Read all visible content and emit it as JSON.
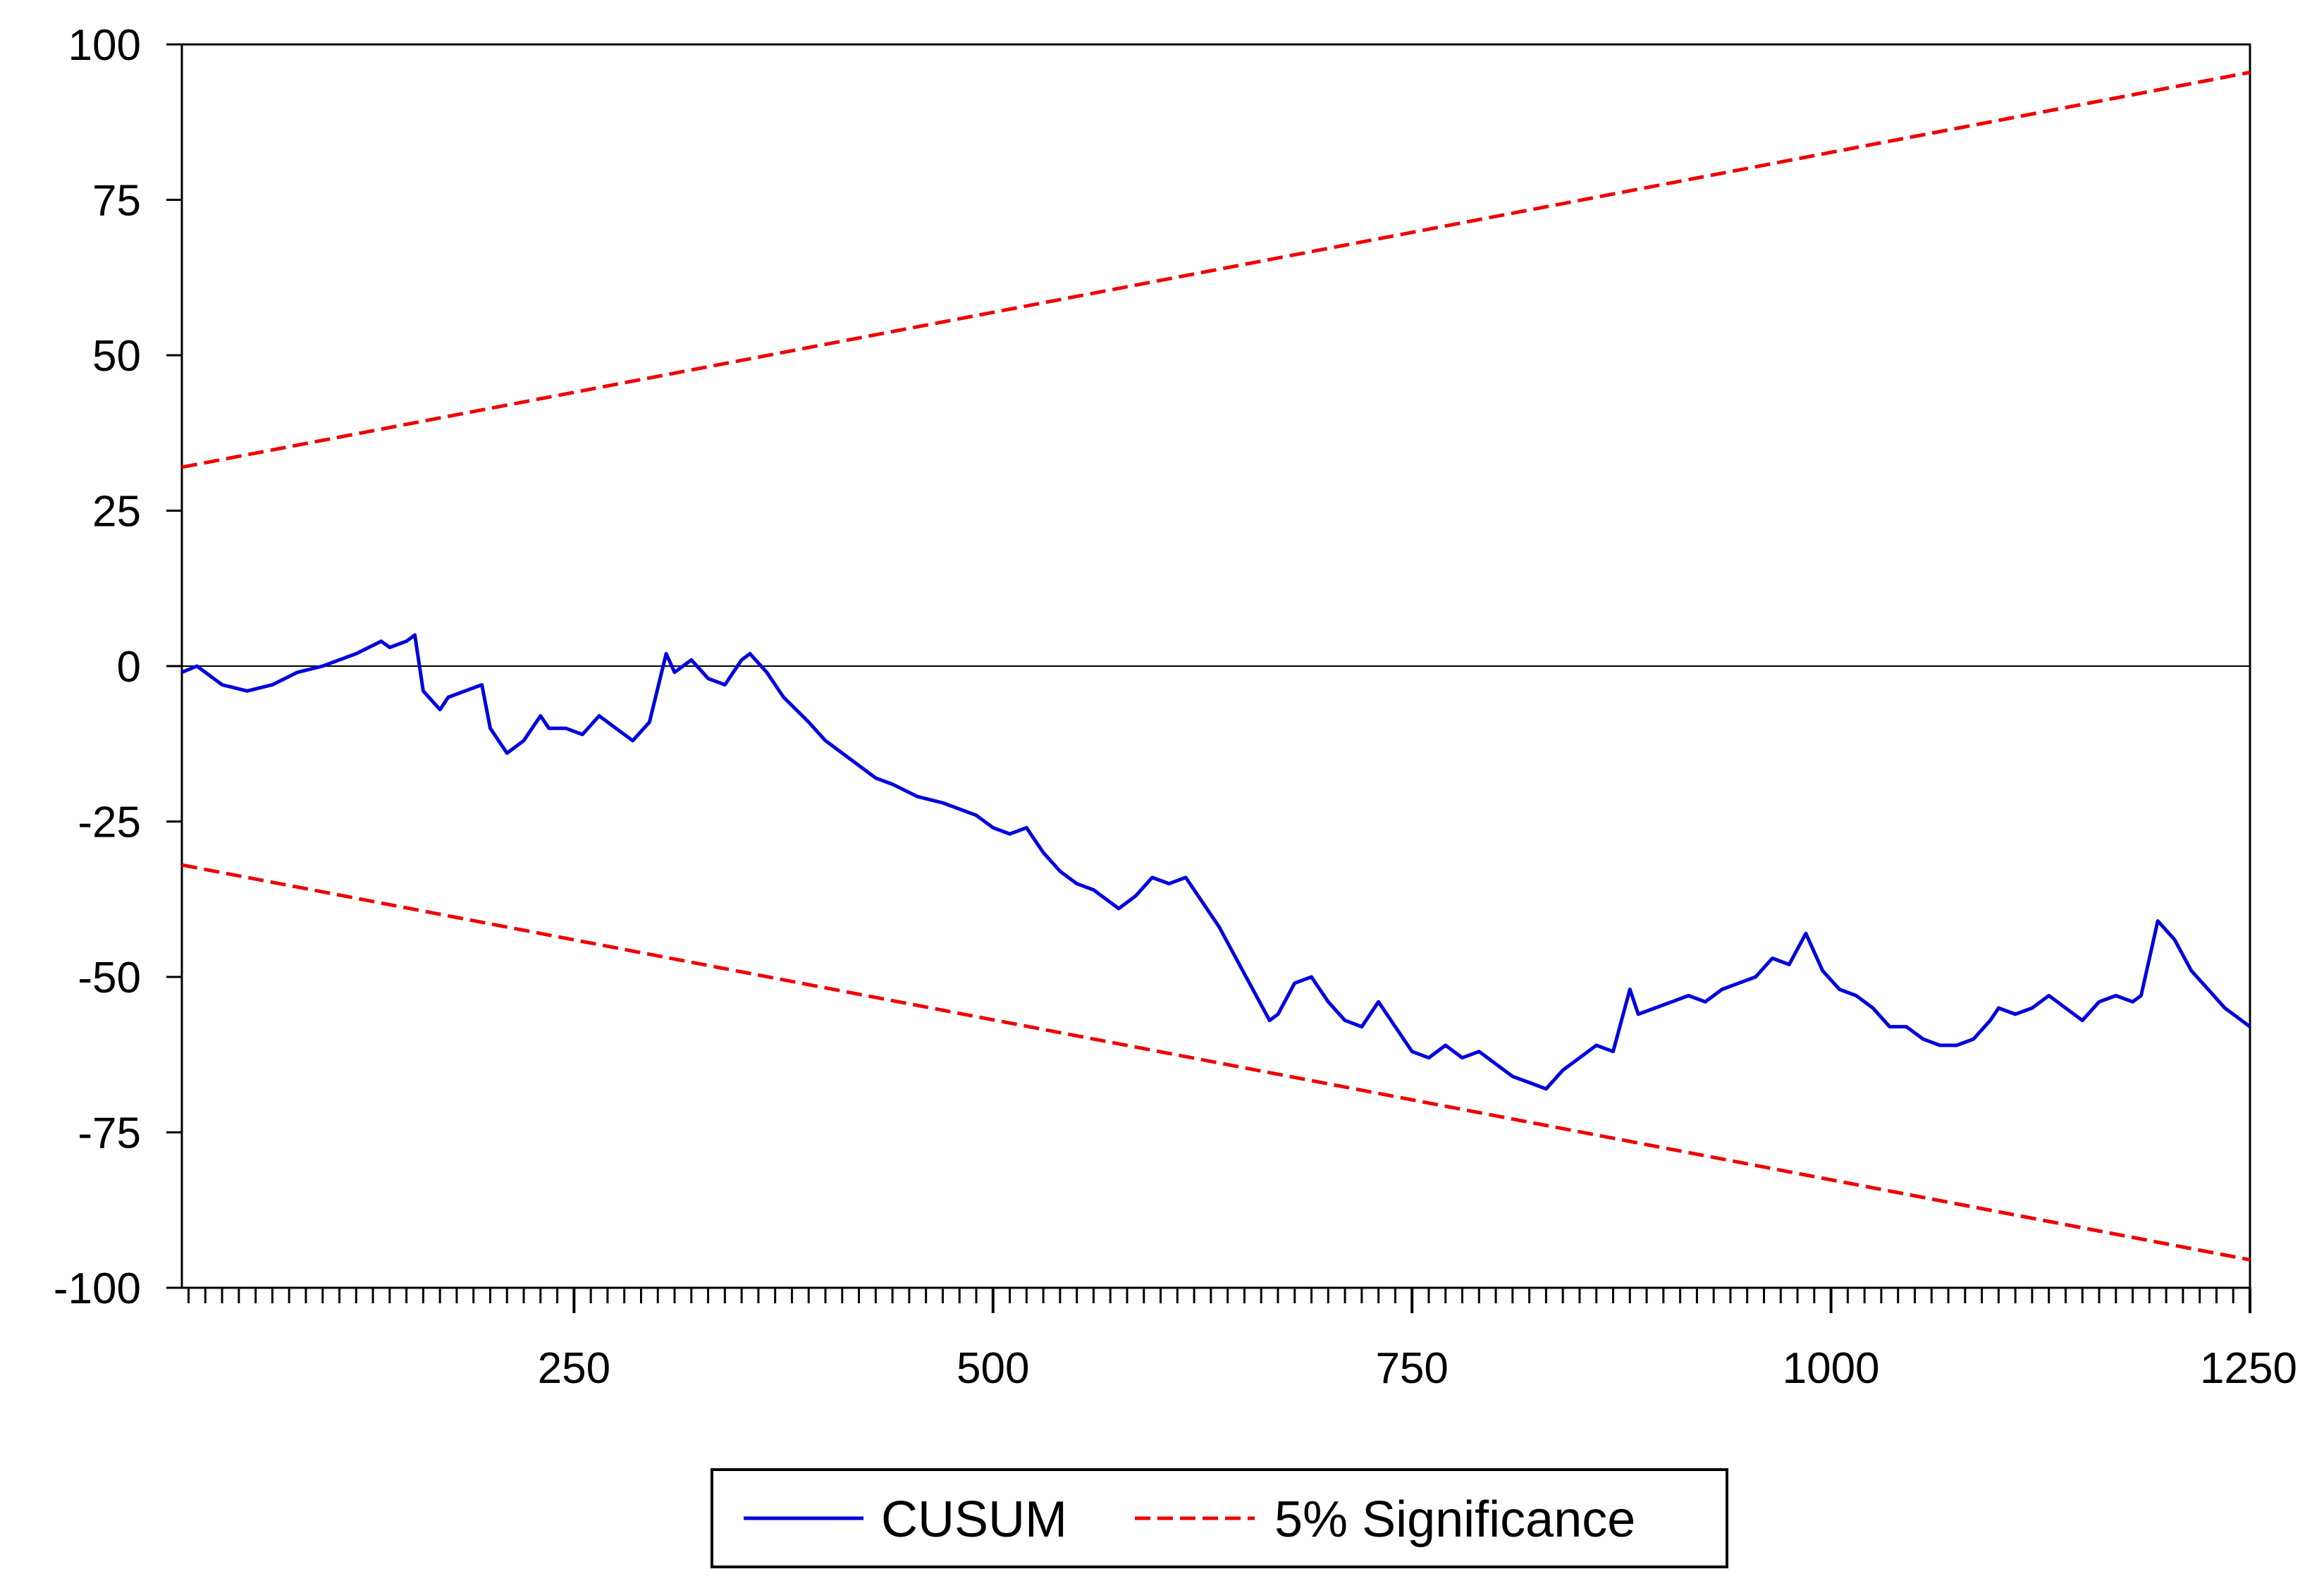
{
  "chart_data": {
    "type": "line",
    "title": "",
    "xlabel": "",
    "ylabel": "",
    "xlim": [
      16,
      1250
    ],
    "ylim": [
      -100,
      100
    ],
    "x_ticks": [
      250,
      500,
      750,
      1000,
      1250
    ],
    "x_tick_labels": [
      "250",
      "500",
      "750",
      "1000",
      "1250"
    ],
    "y_ticks": [
      100,
      75,
      50,
      25,
      0,
      -25,
      -50,
      -75,
      -100
    ],
    "y_tick_labels": [
      "100",
      "75",
      "50",
      "25",
      "0",
      "-25",
      "-50",
      "-75",
      "-100"
    ],
    "zero_line": true,
    "grid": false,
    "legend": {
      "position": "bottom-center",
      "entries": [
        {
          "label": "CUSUM",
          "color": "#0000dd",
          "style": "solid"
        },
        {
          "label": "5% Significance",
          "color": "#ee0000",
          "style": "dashed"
        }
      ]
    },
    "series": [
      {
        "name": "CUSUM",
        "color": "#0000dd",
        "style": "solid",
        "x": [
          16,
          25,
          40,
          55,
          70,
          85,
          100,
          110,
          120,
          135,
          140,
          150,
          155,
          160,
          170,
          175,
          185,
          195,
          200,
          210,
          220,
          230,
          235,
          245,
          255,
          265,
          275,
          285,
          295,
          305,
          310,
          320,
          330,
          340,
          350,
          355,
          365,
          375,
          390,
          400,
          415,
          430,
          440,
          455,
          470,
          490,
          500,
          510,
          520,
          530,
          540,
          550,
          560,
          575,
          585,
          595,
          605,
          615,
          625,
          635,
          645,
          655,
          665,
          670,
          680,
          690,
          700,
          710,
          720,
          730,
          740,
          750,
          760,
          770,
          780,
          790,
          800,
          810,
          820,
          830,
          840,
          850,
          860,
          870,
          880,
          885,
          895,
          905,
          915,
          925,
          935,
          945,
          955,
          965,
          975,
          985,
          995,
          1005,
          1015,
          1025,
          1035,
          1045,
          1055,
          1065,
          1075,
          1085,
          1095,
          1100,
          1110,
          1120,
          1130,
          1140,
          1150,
          1160,
          1170,
          1180,
          1185,
          1195,
          1205,
          1215,
          1225,
          1235,
          1245,
          1250
        ],
        "values": [
          -1,
          0,
          -3,
          -4,
          -3,
          -1,
          0,
          1,
          2,
          4,
          3,
          4,
          5,
          -4,
          -7,
          -5,
          -4,
          -3,
          -10,
          -14,
          -12,
          -8,
          -10,
          -10,
          -11,
          -8,
          -10,
          -12,
          -9,
          2,
          -1,
          1,
          -2,
          -3,
          1,
          2,
          -1,
          -5,
          -9,
          -12,
          -15,
          -18,
          -19,
          -21,
          -22,
          -24,
          -26,
          -27,
          -26,
          -30,
          -33,
          -35,
          -36,
          -39,
          -37,
          -34,
          -35,
          -34,
          -38,
          -42,
          -47,
          -52,
          -57,
          -56,
          -51,
          -50,
          -54,
          -57,
          -58,
          -54,
          -58,
          -62,
          -63,
          -61,
          -63,
          -62,
          -64,
          -66,
          -67,
          -68,
          -65,
          -63,
          -61,
          -62,
          -52,
          -56,
          -55,
          -54,
          -53,
          -54,
          -52,
          -51,
          -50,
          -47,
          -48,
          -43,
          -49,
          -52,
          -53,
          -55,
          -58,
          -58,
          -60,
          -61,
          -61,
          -60,
          -57,
          -55,
          -56,
          -55,
          -53,
          -55,
          -57,
          -54,
          -53,
          -54,
          -53,
          -41,
          -44,
          -49,
          -52,
          -55,
          -57,
          -58
        ]
      },
      {
        "name": "5% Significance",
        "color": "#ee0000",
        "style": "dashed",
        "x": [
          16,
          1250
        ],
        "values": [
          32,
          95.5
        ]
      },
      {
        "name": "5% Significance",
        "color": "#ee0000",
        "style": "dashed",
        "x": [
          16,
          1250
        ],
        "values": [
          -32,
          -95.5
        ]
      }
    ]
  }
}
